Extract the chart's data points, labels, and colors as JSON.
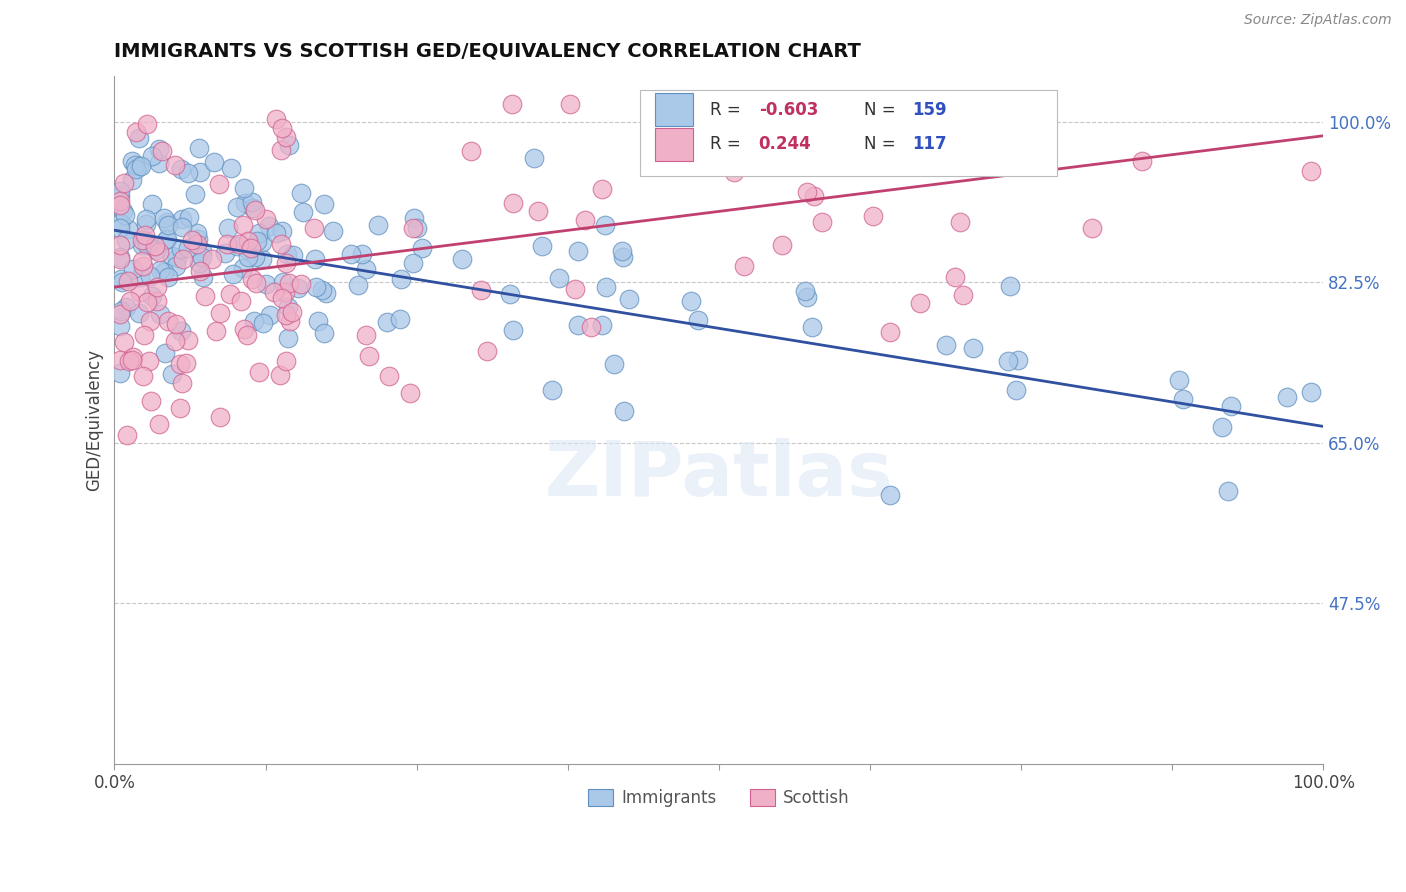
{
  "title": "IMMIGRANTS VS SCOTTISH GED/EQUIVALENCY CORRELATION CHART",
  "source_text": "Source: ZipAtlas.com",
  "ylabel": "GED/Equivalency",
  "xlim": [
    0.0,
    1.0
  ],
  "ylim": [
    0.3,
    1.05
  ],
  "yticks": [
    0.475,
    0.65,
    0.825,
    1.0
  ],
  "ytick_labels": [
    "47.5%",
    "65.0%",
    "82.5%",
    "100.0%"
  ],
  "xtick_positions": [
    0.0,
    0.125,
    0.25,
    0.375,
    0.5,
    0.625,
    0.75,
    0.875,
    1.0
  ],
  "xtick_labels": [
    "0.0%",
    "",
    "",
    "",
    "",
    "",
    "",
    "",
    "100.0%"
  ],
  "immigrants_color": "#aac8e8",
  "scottish_color": "#f0b0c8",
  "immigrants_edge": "#6090c0",
  "scottish_edge": "#d06090",
  "trend_immigrants_color": "#3050a0",
  "trend_scottish_color": "#c04070",
  "legend_label_immigrants": "Immigrants",
  "legend_label_scottish": "Scottish",
  "R_immigrants": -0.603,
  "N_immigrants": 159,
  "R_scottish": 0.244,
  "N_scottish": 117,
  "watermark": "ZIPatlas",
  "background_color": "#ffffff",
  "grid_color": "#c8c8c8",
  "imm_trend_y0": 0.882,
  "imm_trend_y1": 0.668,
  "scot_trend_y0": 0.82,
  "scot_trend_y1": 0.985
}
